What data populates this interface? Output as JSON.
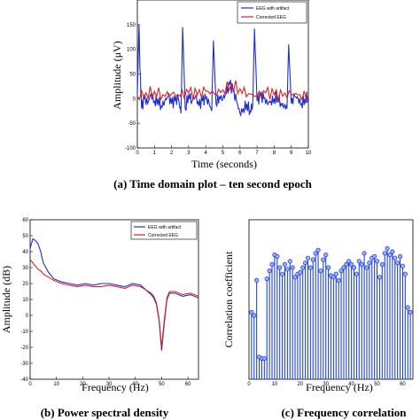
{
  "chart_data": [
    {
      "type": "line",
      "title": "",
      "xlabel": "Time (seconds)",
      "ylabel": "Amplitude (μV)",
      "caption": "(a)  Time domain plot – ten second epoch",
      "xlim": [
        0,
        10
      ],
      "ylim": [
        -100,
        200
      ],
      "xticks": [
        "0",
        "1",
        "2",
        "3",
        "4",
        "5",
        "6",
        "7",
        "8",
        "9",
        "10"
      ],
      "yticks": [
        "-100",
        "-50",
        "0",
        "50",
        "100",
        "150"
      ],
      "legend": "top-right",
      "series": [
        {
          "name": "EEG with artifact",
          "color": "#1f2fcf",
          "x": [
            0,
            0.1,
            0.15,
            0.25,
            0.4,
            0.6,
            0.8,
            1.0,
            1.2,
            1.4,
            1.6,
            1.8,
            2.0,
            2.2,
            2.4,
            2.55,
            2.65,
            2.8,
            3.0,
            3.2,
            3.4,
            3.6,
            3.8,
            4.0,
            4.2,
            4.35,
            4.45,
            4.6,
            4.8,
            5.0,
            5.2,
            5.4,
            5.6,
            5.8,
            6.0,
            6.2,
            6.4,
            6.6,
            6.75,
            6.85,
            7.0,
            7.2,
            7.4,
            7.6,
            7.8,
            8.0,
            8.2,
            8.4,
            8.6,
            8.75,
            8.85,
            9.0,
            9.2,
            9.4,
            9.6,
            9.8,
            10.0
          ],
          "y": [
            10,
            150,
            60,
            -20,
            0,
            -10,
            10,
            -5,
            0,
            -15,
            -5,
            5,
            -10,
            -5,
            0,
            -30,
            145,
            -20,
            10,
            -5,
            5,
            -15,
            -5,
            0,
            -10,
            -25,
            118,
            -10,
            5,
            0,
            10,
            30,
            15,
            -5,
            -30,
            -20,
            -10,
            -25,
            -10,
            142,
            -5,
            5,
            0,
            -10,
            -5,
            0,
            5,
            -10,
            -15,
            -20,
            110,
            -10,
            5,
            0,
            -10,
            0,
            5
          ]
        },
        {
          "name": "Corrected EEG",
          "color": "#e02020",
          "x": [
            0,
            0.5,
            1.0,
            1.5,
            2.0,
            2.5,
            3.0,
            3.5,
            4.0,
            4.5,
            5.0,
            5.5,
            6.0,
            6.5,
            7.0,
            7.5,
            8.0,
            8.5,
            9.0,
            9.5,
            10.0
          ],
          "y": [
            5,
            12,
            15,
            8,
            10,
            5,
            12,
            8,
            15,
            10,
            18,
            30,
            20,
            10,
            5,
            12,
            8,
            5,
            10,
            8,
            5
          ]
        }
      ]
    },
    {
      "type": "line",
      "title": "",
      "xlabel": "Frequency (Hz)",
      "ylabel": "Amplitude (dB)",
      "caption": "(b) Power spectral density",
      "xlim": [
        0,
        64
      ],
      "ylim": [
        -40,
        60
      ],
      "xticks": [
        "0",
        "10",
        "20",
        "30",
        "40",
        "50",
        "60"
      ],
      "yticks": [
        "-40",
        "-30",
        "-20",
        "-10",
        "0",
        "10",
        "20",
        "30",
        "40",
        "50",
        "60"
      ],
      "legend": "top-right",
      "series": [
        {
          "name": "EEG with artifact",
          "color": "#1f2fcf",
          "x": [
            0,
            1,
            2,
            3,
            4,
            5,
            7,
            9,
            12,
            15,
            18,
            21,
            24,
            27,
            30,
            33,
            36,
            39,
            42,
            44,
            46,
            47,
            48,
            49,
            50,
            51,
            52,
            53,
            55,
            58,
            61,
            64
          ],
          "y": [
            42,
            48,
            47,
            45,
            40,
            33,
            27,
            23,
            21,
            20,
            19,
            20,
            19,
            20,
            20,
            19,
            18,
            20,
            19,
            16,
            13,
            11,
            7,
            -3,
            -22,
            -5,
            10,
            14,
            14,
            12,
            13,
            11
          ]
        },
        {
          "name": "Corrected EEG",
          "color": "#e02020",
          "x": [
            0,
            1,
            2,
            3,
            4,
            5,
            7,
            9,
            12,
            15,
            18,
            21,
            24,
            27,
            30,
            33,
            36,
            39,
            42,
            44,
            46,
            47,
            48,
            49,
            50,
            51,
            52,
            53,
            55,
            58,
            61,
            64
          ],
          "y": [
            35,
            33,
            31,
            29,
            28,
            26,
            24,
            22,
            20,
            19,
            18,
            19,
            18,
            18,
            19,
            18,
            17,
            19,
            18,
            16,
            14,
            12,
            8,
            -2,
            -20,
            -3,
            11,
            15,
            15,
            13,
            14,
            12
          ]
        }
      ]
    },
    {
      "type": "bar",
      "title": "",
      "xlabel": "Frequency (Hz)",
      "ylabel": "Correlation coefficient",
      "caption": "(c)  Frequency correlation",
      "xlim": [
        0,
        64
      ],
      "ylim": [
        0,
        1
      ],
      "xticks": [
        "0",
        "10",
        "20",
        "30",
        "40",
        "50",
        "60"
      ],
      "yticks": [],
      "legend": "none",
      "series": [
        {
          "name": "",
          "color": "#2244dd",
          "x": [
            1,
            2,
            3,
            4,
            5,
            6,
            7,
            8,
            9,
            10,
            11,
            12,
            13,
            14,
            15,
            16,
            17,
            18,
            19,
            20,
            21,
            22,
            23,
            24,
            25,
            26,
            27,
            28,
            29,
            30,
            31,
            32,
            33,
            34,
            35,
            36,
            37,
            38,
            39,
            40,
            41,
            42,
            43,
            44,
            45,
            46,
            47,
            48,
            49,
            50,
            51,
            52,
            53,
            54,
            55,
            56,
            57,
            58,
            59,
            60,
            61,
            62,
            63
          ],
          "y": [
            0.42,
            0.4,
            0.62,
            0.14,
            0.13,
            0.13,
            0.63,
            0.68,
            0.72,
            0.78,
            0.77,
            0.7,
            0.66,
            0.72,
            0.69,
            0.74,
            0.7,
            0.64,
            0.66,
            0.67,
            0.7,
            0.73,
            0.76,
            0.7,
            0.75,
            0.79,
            0.81,
            0.68,
            0.75,
            0.78,
            0.7,
            0.65,
            0.64,
            0.66,
            0.62,
            0.68,
            0.7,
            0.72,
            0.74,
            0.72,
            0.7,
            0.66,
            0.74,
            0.72,
            0.79,
            0.7,
            0.73,
            0.76,
            0.77,
            0.74,
            0.64,
            0.72,
            0.79,
            0.82,
            0.78,
            0.8,
            0.76,
            0.73,
            0.77,
            0.71,
            0.66,
            0.45,
            0.42
          ]
        }
      ]
    }
  ]
}
